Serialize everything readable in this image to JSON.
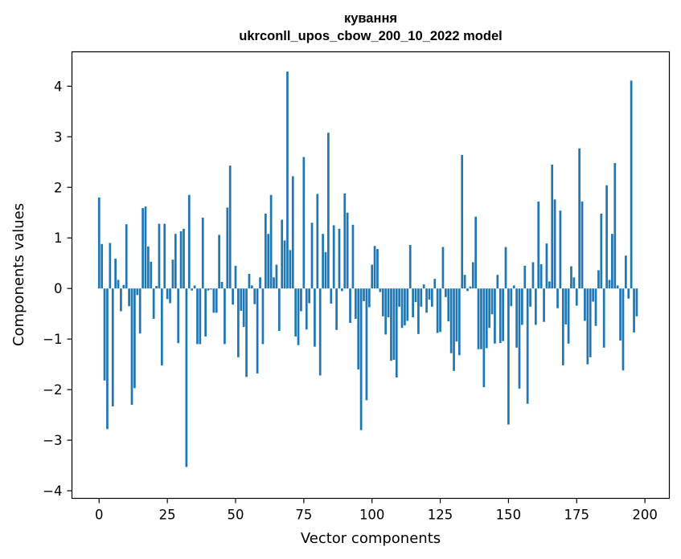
{
  "chart_data": {
    "type": "bar",
    "title_line1": "кування",
    "title_line2": "ukrconll_upos_cbow_200_10_2022 model",
    "xlabel": "Vector components",
    "ylabel": "Components values",
    "xlim": [
      -9.95,
      208.95
    ],
    "ylim": [
      -4.15,
      4.68
    ],
    "x_ticks": [
      0,
      25,
      50,
      75,
      100,
      125,
      150,
      175,
      200
    ],
    "y_ticks": [
      -4,
      -3,
      -2,
      -1,
      0,
      1,
      2,
      3,
      4
    ],
    "bar_color": "#1f77b4",
    "values": [
      1.8,
      0.88,
      -1.82,
      -2.78,
      0.9,
      -2.33,
      0.59,
      0.17,
      -0.45,
      0.07,
      1.27,
      -0.35,
      -2.3,
      -1.97,
      -0.13,
      -0.89,
      1.59,
      1.62,
      0.83,
      0.53,
      -0.6,
      0.05,
      1.28,
      -1.52,
      1.28,
      -0.21,
      -0.29,
      0.57,
      1.08,
      -1.08,
      1.13,
      1.18,
      -3.53,
      1.85,
      -0.04,
      0.06,
      -1.1,
      -1.1,
      1.4,
      -0.95,
      -0.04,
      -0.02,
      -0.48,
      -0.48,
      1.06,
      0.13,
      -1.1,
      1.6,
      2.43,
      -0.32,
      0.45,
      -1.36,
      -0.44,
      -0.76,
      -1.75,
      0.29,
      0.06,
      -0.31,
      -1.68,
      0.22,
      -1.1,
      1.48,
      1.08,
      1.85,
      0.22,
      0.47,
      -0.84,
      1.36,
      0.95,
      4.29,
      0.76,
      2.22,
      -0.95,
      -1.12,
      -0.45,
      2.6,
      -0.81,
      -0.29,
      1.3,
      -1.15,
      1.87,
      -1.72,
      1.08,
      0.72,
      3.08,
      -0.3,
      1.25,
      -0.82,
      1.18,
      -0.05,
      1.88,
      1.5,
      -0.68,
      1.26,
      -0.6,
      -1.6,
      -2.8,
      -0.25,
      -2.21,
      -0.37,
      0.47,
      0.84,
      0.78,
      -0.07,
      -0.55,
      -0.91,
      -0.57,
      -1.43,
      -1.41,
      -1.76,
      -0.36,
      -0.78,
      -0.73,
      -0.64,
      0.86,
      -0.57,
      -0.27,
      -0.9,
      -0.36,
      0.08,
      -0.48,
      -0.22,
      -0.36,
      0.19,
      -0.88,
      -0.86,
      0.82,
      -0.17,
      -0.65,
      -1.28,
      -1.63,
      -1.05,
      -1.32,
      2.64,
      0.27,
      -0.05,
      0.04,
      0.52,
      1.42,
      -1.2,
      -1.2,
      -1.95,
      -1.18,
      -0.78,
      -0.51,
      -1.09,
      0.27,
      -1.08,
      -1.04,
      0.82,
      -2.69,
      -0.35,
      0.06,
      -1.17,
      -1.98,
      -0.72,
      0.45,
      -2.28,
      -0.36,
      0.52,
      -0.72,
      1.72,
      0.48,
      -0.66,
      0.89,
      0.14,
      2.45,
      1.76,
      -0.39,
      1.54,
      -1.52,
      -0.71,
      -1.09,
      0.44,
      0.22,
      -0.34,
      2.77,
      1.72,
      -0.64,
      -1.5,
      -1.36,
      -0.26,
      -0.74,
      0.36,
      1.48,
      -1.17,
      2.04,
      0.17,
      1.08,
      2.48,
      0.06,
      -1.03,
      -1.62,
      0.65,
      -0.2,
      4.11,
      -0.87,
      -0.55
    ]
  }
}
